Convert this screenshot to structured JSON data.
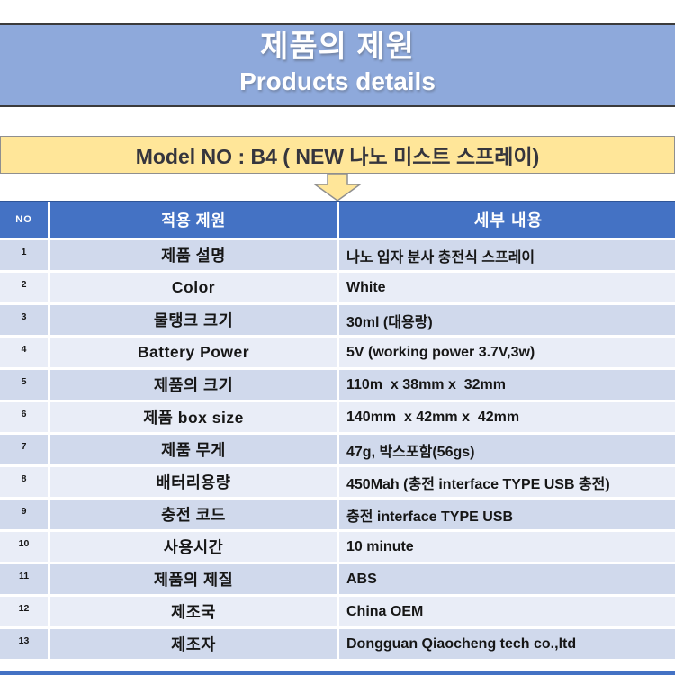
{
  "banner": {
    "title": "제품의 제원",
    "subtitle": "Products details",
    "bg": "#8EA9DB",
    "border_color": "#3b3b3b",
    "text_color": "#ffffff"
  },
  "model_banner": {
    "text": "Model NO : B4 ( NEW 나노 미스트 스프레이)",
    "bg": "#FFE699",
    "border_color": "#8f8f8f",
    "text_color": "#35353D"
  },
  "arrow": {
    "fill": "#FFE699",
    "stroke": "#8f8f8f"
  },
  "table": {
    "header": {
      "no": "NO",
      "spec": "적용 제원",
      "detail": "세부 내용"
    },
    "header_bg": "#4472C4",
    "header_text_color": "#ffffff",
    "row_color_odd": "#D0D9EC",
    "row_color_even": "#E9EDF7",
    "rows": [
      {
        "no": "1",
        "spec": "제품 설명",
        "detail": "나노 입자 분사 충전식 스프레이"
      },
      {
        "no": "2",
        "spec": "Color",
        "detail": "White"
      },
      {
        "no": "3",
        "spec": "물탱크 크기",
        "detail": "30ml (대용량)"
      },
      {
        "no": "4",
        "spec": "Battery Power",
        "detail": "5V (working power 3.7V,3w)"
      },
      {
        "no": "5",
        "spec": "제품의 크기",
        "detail": "110m  x 38mm x  32mm"
      },
      {
        "no": "6",
        "spec": "제품 box size",
        "detail": "140mm  x 42mm x  42mm"
      },
      {
        "no": "7",
        "spec": "제품 무게",
        "detail": "47g, 박스포함(56gs)"
      },
      {
        "no": "8",
        "spec": "배터리용량",
        "detail": "450Mah (충전 interface TYPE USB 충전)"
      },
      {
        "no": "9",
        "spec": "충전 코드",
        "detail": "충전 interface TYPE USB"
      },
      {
        "no": "10",
        "spec": "사용시간",
        "detail": "10 minute"
      },
      {
        "no": "11",
        "spec": "제품의 제질",
        "detail": "ABS"
      },
      {
        "no": "12",
        "spec": "제조국",
        "detail": "China OEM"
      },
      {
        "no": "13",
        "spec": "제조자",
        "detail": "Dongguan Qiaocheng tech co.,ltd"
      }
    ]
  },
  "footer": {
    "bar_color": "#4472C4"
  }
}
